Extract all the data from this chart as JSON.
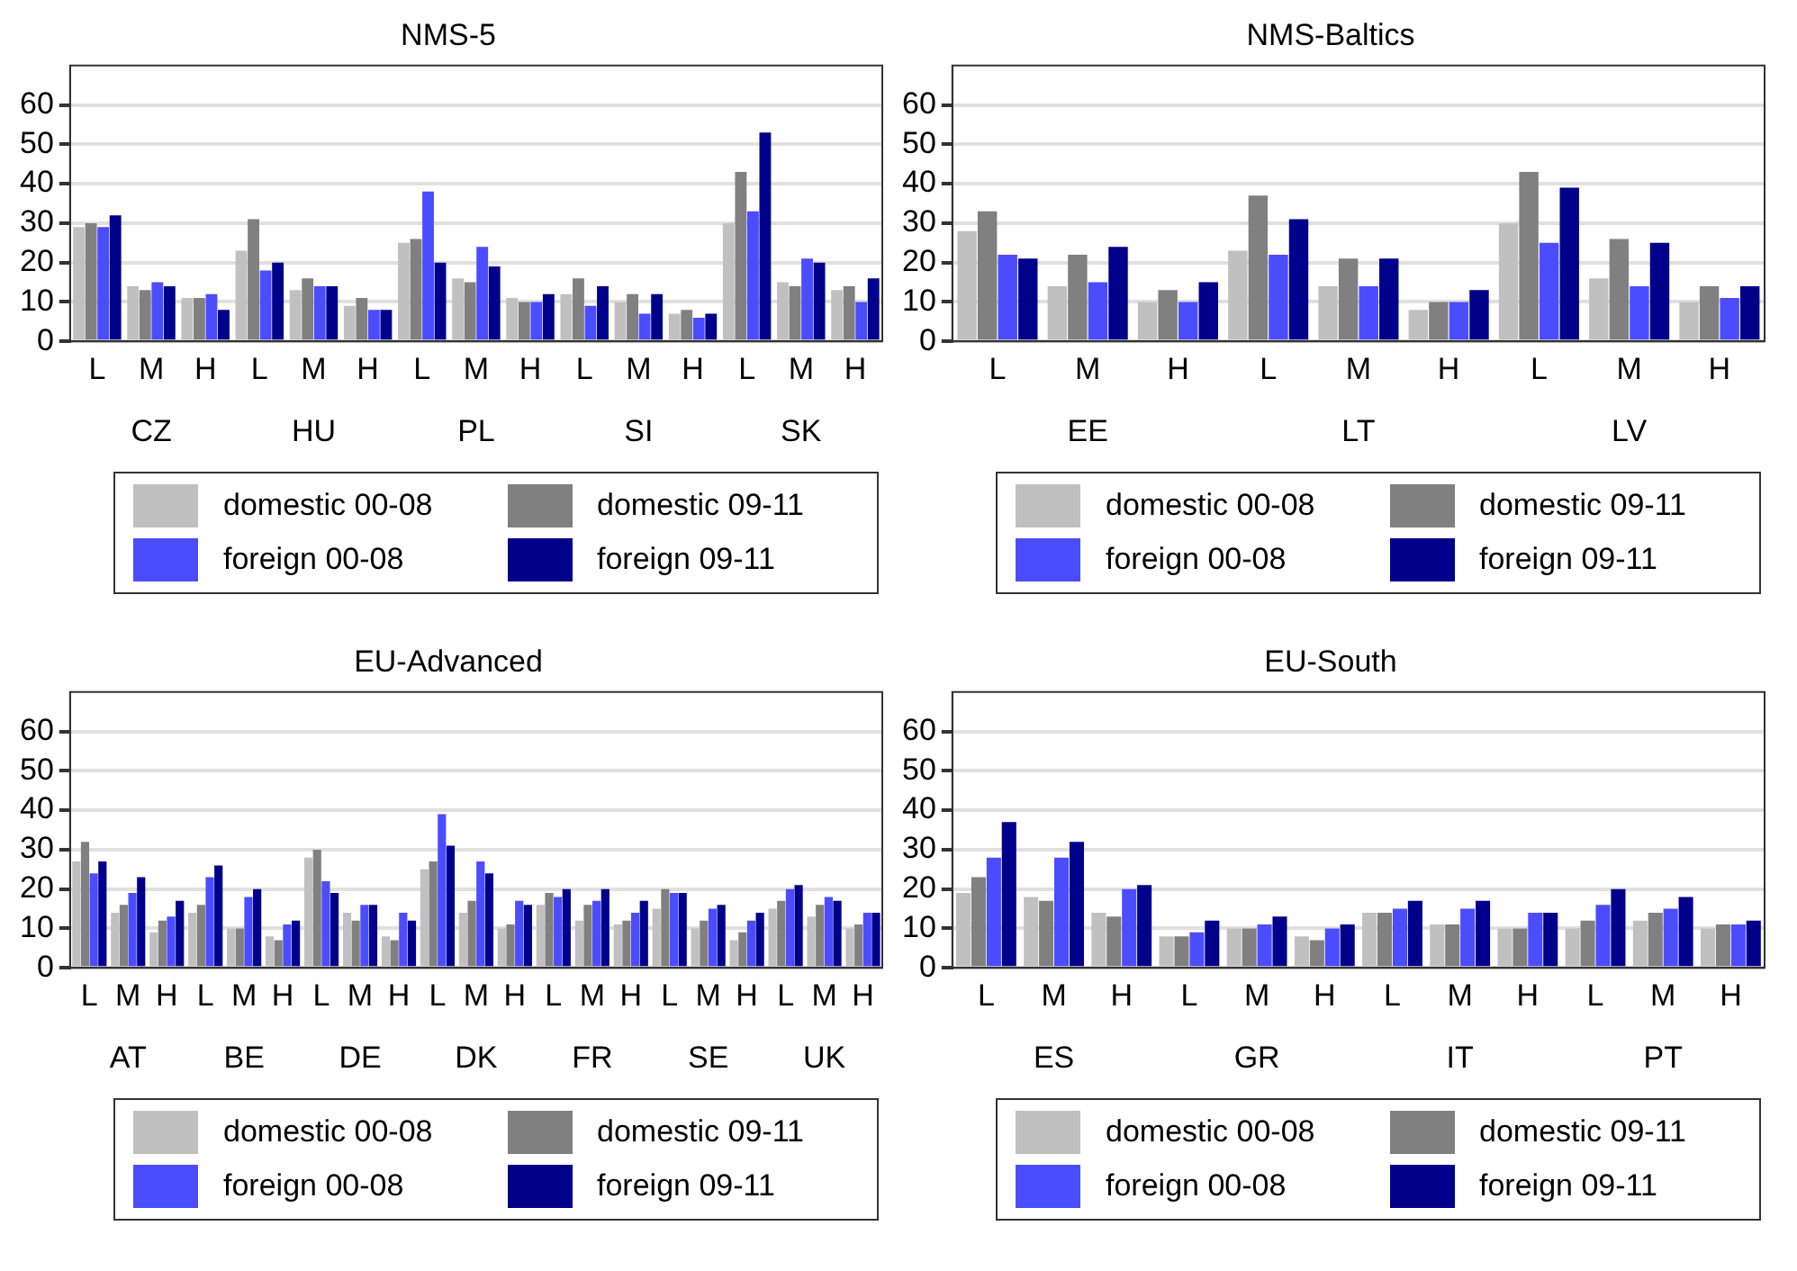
{
  "chart_data": [
    {
      "type": "bar",
      "title": "NMS-5",
      "categories": [
        "L",
        "M",
        "H",
        "L",
        "M",
        "H",
        "L",
        "M",
        "H",
        "L",
        "M",
        "H",
        "L",
        "M",
        "H"
      ],
      "annotations": [
        "CZ",
        "HU",
        "PL",
        "SI",
        "SK"
      ],
      "ylim": [
        0,
        70
      ],
      "yticks": [
        0,
        10,
        20,
        30,
        40,
        50,
        60
      ],
      "grid": "y",
      "legend": "bottom",
      "series": [
        {
          "name": "domestic 00-08",
          "color": "#c0c0c0",
          "values": [
            29,
            14,
            11,
            23,
            13,
            9,
            25,
            16,
            11,
            12,
            10,
            7,
            30,
            15,
            13
          ]
        },
        {
          "name": "domestic 09-11",
          "color": "#808080",
          "values": [
            30,
            13,
            11,
            31,
            16,
            11,
            26,
            15,
            10,
            16,
            12,
            8,
            43,
            14,
            14
          ]
        },
        {
          "name": "foreign 00-08",
          "color": "#4c4cff",
          "values": [
            29,
            15,
            12,
            18,
            14,
            8,
            38,
            24,
            10,
            9,
            7,
            6,
            33,
            21,
            10
          ]
        },
        {
          "name": "foreign 09-11",
          "color": "#00008b",
          "values": [
            32,
            14,
            8,
            20,
            14,
            8,
            20,
            19,
            12,
            14,
            12,
            7,
            53,
            20,
            16
          ]
        }
      ]
    },
    {
      "type": "bar",
      "title": "NMS-Baltics",
      "categories": [
        "L",
        "M",
        "H",
        "L",
        "M",
        "H",
        "L",
        "M",
        "H"
      ],
      "annotations": [
        "EE",
        "LT",
        "LV"
      ],
      "ylim": [
        0,
        70
      ],
      "yticks": [
        0,
        10,
        20,
        30,
        40,
        50,
        60
      ],
      "grid": "y",
      "legend": "bottom",
      "series": [
        {
          "name": "domestic 00-08",
          "color": "#c0c0c0",
          "values": [
            28,
            14,
            10,
            23,
            14,
            8,
            30,
            16,
            10
          ]
        },
        {
          "name": "domestic 09-11",
          "color": "#808080",
          "values": [
            33,
            22,
            13,
            37,
            21,
            10,
            43,
            26,
            14
          ]
        },
        {
          "name": "foreign 00-08",
          "color": "#4c4cff",
          "values": [
            22,
            15,
            10,
            22,
            14,
            10,
            25,
            14,
            11
          ]
        },
        {
          "name": "foreign 09-11",
          "color": "#00008b",
          "values": [
            21,
            24,
            15,
            31,
            21,
            13,
            39,
            25,
            14
          ]
        }
      ]
    },
    {
      "type": "bar",
      "title": "EU-Advanced",
      "categories": [
        "L",
        "M",
        "H",
        "L",
        "M",
        "H",
        "L",
        "M",
        "H",
        "L",
        "M",
        "H",
        "L",
        "M",
        "H",
        "L",
        "M",
        "H",
        "L",
        "M",
        "H"
      ],
      "annotations": [
        "AT",
        "BE",
        "DE",
        "DK",
        "FR",
        "SE",
        "UK"
      ],
      "ylim": [
        0,
        70
      ],
      "yticks": [
        0,
        10,
        20,
        30,
        40,
        50,
        60
      ],
      "grid": "y",
      "legend": "bottom",
      "series": [
        {
          "name": "domestic 00-08",
          "color": "#c0c0c0",
          "values": [
            27,
            14,
            9,
            14,
            10,
            8,
            28,
            14,
            8,
            25,
            14,
            10,
            16,
            12,
            11,
            15,
            10,
            7,
            15,
            13,
            10
          ]
        },
        {
          "name": "domestic 09-11",
          "color": "#808080",
          "values": [
            32,
            16,
            12,
            16,
            10,
            7,
            30,
            12,
            7,
            27,
            17,
            11,
            19,
            16,
            12,
            20,
            12,
            9,
            17,
            16,
            11
          ]
        },
        {
          "name": "foreign 00-08",
          "color": "#4c4cff",
          "values": [
            24,
            19,
            13,
            23,
            18,
            11,
            22,
            16,
            14,
            39,
            27,
            17,
            18,
            17,
            14,
            19,
            15,
            12,
            20,
            18,
            14
          ]
        },
        {
          "name": "foreign 09-11",
          "color": "#00008b",
          "values": [
            27,
            23,
            17,
            26,
            20,
            12,
            19,
            16,
            12,
            31,
            24,
            16,
            20,
            20,
            17,
            19,
            16,
            14,
            21,
            17,
            14
          ]
        }
      ]
    },
    {
      "type": "bar",
      "title": "EU-South",
      "categories": [
        "L",
        "M",
        "H",
        "L",
        "M",
        "H",
        "L",
        "M",
        "H",
        "L",
        "M",
        "H"
      ],
      "annotations": [
        "ES",
        "GR",
        "IT",
        "PT"
      ],
      "ylim": [
        0,
        70
      ],
      "yticks": [
        0,
        10,
        20,
        30,
        40,
        50,
        60
      ],
      "grid": "y",
      "legend": "bottom",
      "series": [
        {
          "name": "domestic 00-08",
          "color": "#c0c0c0",
          "values": [
            19,
            18,
            14,
            8,
            10,
            8,
            14,
            11,
            10,
            10,
            12,
            10
          ]
        },
        {
          "name": "domestic 09-11",
          "color": "#808080",
          "values": [
            23,
            17,
            13,
            8,
            10,
            7,
            14,
            11,
            10,
            12,
            14,
            11
          ]
        },
        {
          "name": "foreign 00-08",
          "color": "#4c4cff",
          "values": [
            28,
            28,
            20,
            9,
            11,
            10,
            15,
            15,
            14,
            16,
            15,
            11
          ]
        },
        {
          "name": "foreign 09-11",
          "color": "#00008b",
          "values": [
            37,
            32,
            21,
            12,
            13,
            11,
            17,
            17,
            14,
            20,
            18,
            12
          ]
        }
      ]
    }
  ]
}
